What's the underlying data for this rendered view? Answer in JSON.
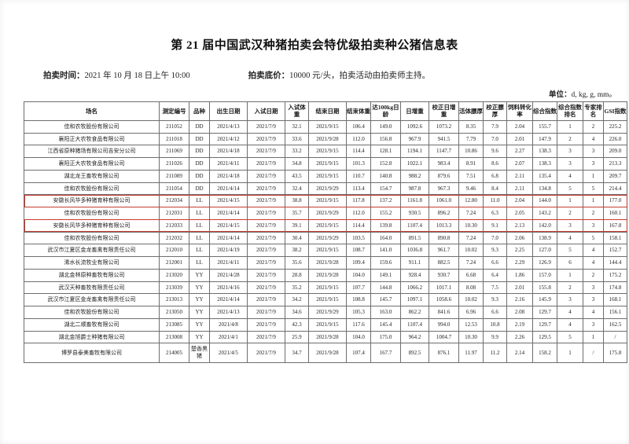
{
  "accent_red": "#c63c30",
  "page": {
    "title": "第 21 届中国武汉种猪拍卖会特优级拍卖种公猪信息表",
    "auction_time_label": "拍卖时间：",
    "auction_time": "2021 年 10 月 18 日上午 10:00",
    "base_price_label": "拍卖底价：",
    "base_price": "10000 元/头，拍卖活动由拍卖师主持。",
    "unit_label": "单位：",
    "unit": "d, kg, g, mm。"
  },
  "table": {
    "checkmark_glyph": "✔",
    "headers": [
      "场名",
      "测定编号",
      "品种",
      "出生日期",
      "入试日期",
      "入试体重",
      "结束日期",
      "结束体重",
      "达100kg日龄",
      "日增重",
      "校正日增重",
      "活体膘厚",
      "校正膘厚",
      "饲料转化率",
      "综合指数",
      "综合指数排名",
      "专家排名",
      "GSI指数"
    ],
    "rows": [
      {
        "highlighted": false,
        "checkmark": false,
        "cells": [
          "佳和农牧股份有限公司",
          "211052",
          "DD",
          "2021/4/13",
          "2021/7/9",
          "32.1",
          "2021/9/15",
          "106.4",
          "149.0",
          "1092.6",
          "1073.2",
          "8.35",
          "7.9",
          "2.04",
          "155.7",
          "1",
          "2",
          "225.2"
        ]
      },
      {
        "highlighted": false,
        "checkmark": false,
        "cells": [
          "襄阳正大农牧食品有限公司",
          "211018",
          "DD",
          "2021/4/12",
          "2021/7/9",
          "33.6",
          "2021/9/28",
          "112.0",
          "156.8",
          "967.9",
          "941.5",
          "7.79",
          "7.0",
          "2.01",
          "147.9",
          "2",
          "4",
          "226.0"
        ]
      },
      {
        "highlighted": false,
        "checkmark": false,
        "cells": [
          "江西省原种猪场有限公司吉安分公司",
          "211069",
          "DD",
          "2021/4/18",
          "2021/7/9",
          "33.2",
          "2021/9/15",
          "114.4",
          "128.1",
          "1194.1",
          "1147.7",
          "10.86",
          "9.6",
          "2.27",
          "138.3",
          "3",
          "3",
          "209.0"
        ]
      },
      {
        "highlighted": false,
        "checkmark": false,
        "cells": [
          "襄阳正大农牧食品有限公司",
          "211026",
          "DD",
          "2021/4/11",
          "2021/7/9",
          "34.8",
          "2021/9/15",
          "101.3",
          "152.8",
          "1022.1",
          "983.4",
          "8.91",
          "8.6",
          "2.07",
          "138.3",
          "3",
          "3",
          "213.3"
        ]
      },
      {
        "highlighted": false,
        "checkmark": false,
        "cells": [
          "湖北龙王畜牧有限公司",
          "211089",
          "DD",
          "2021/4/18",
          "2021/7/9",
          "43.5",
          "2021/9/15",
          "110.7",
          "140.8",
          "988.2",
          "879.6",
          "7.51",
          "6.8",
          "2.11",
          "135.4",
          "4",
          "1",
          "209.7"
        ]
      },
      {
        "highlighted": false,
        "checkmark": false,
        "cells": [
          "佳和农牧股份有限公司",
          "211054",
          "DD",
          "2021/4/14",
          "2021/7/9",
          "32.4",
          "2021/9/29",
          "113.4",
          "154.7",
          "987.8",
          "967.3",
          "9.46",
          "8.4",
          "2.11",
          "134.8",
          "5",
          "5",
          "214.4"
        ]
      },
      {
        "highlighted": true,
        "checkmark": true,
        "cells": [
          "安徽长风华多种猪育种有限公司",
          "212034",
          "LL",
          "2021/4/15",
          "2021/7/9",
          "38.8",
          "2021/9/15",
          "117.8",
          "137.2",
          "1161.8",
          "1061.0",
          "12.80",
          "11.0",
          "2.04",
          "144.0",
          "1",
          "1",
          "177.0"
        ]
      },
      {
        "highlighted": false,
        "checkmark": false,
        "cells": [
          "佳和农牧股份有限公司",
          "212031",
          "LL",
          "2021/4/14",
          "2021/7/9",
          "35.7",
          "2021/9/29",
          "112.0",
          "155.2",
          "930.5",
          "896.2",
          "7.24",
          "6.3",
          "2.05",
          "143.2",
          "2",
          "2",
          "160.1"
        ]
      },
      {
        "highlighted": true,
        "checkmark": true,
        "cells": [
          "安徽长风华多种猪育种有限公司",
          "212033",
          "LL",
          "2021/4/15",
          "2021/7/9",
          "39.1",
          "2021/9/15",
          "114.4",
          "139.8",
          "1107.4",
          "1013.3",
          "10.30",
          "9.1",
          "2.13",
          "142.0",
          "3",
          "3",
          "167.8"
        ]
      },
      {
        "highlighted": false,
        "checkmark": false,
        "cells": [
          "佳和农牧股份有限公司",
          "212032",
          "LL",
          "2021/4/14",
          "2021/7/9",
          "30.4",
          "2021/9/29",
          "103.5",
          "164.0",
          "891.5",
          "890.8",
          "7.24",
          "7.0",
          "2.06",
          "138.9",
          "4",
          "5",
          "158.1"
        ]
      },
      {
        "highlighted": false,
        "checkmark": false,
        "cells": [
          "武汉市江夏区金龙畜禽有限责任公司",
          "212010",
          "LL",
          "2021/4/19",
          "2021/7/9",
          "38.2",
          "2021/9/15",
          "108.7",
          "141.0",
          "1036.8",
          "961.7",
          "10.02",
          "9.3",
          "2.25",
          "127.0",
          "5",
          "4",
          "152.7"
        ]
      },
      {
        "highlighted": false,
        "checkmark": false,
        "cells": [
          "浠水长流牧业有限公司",
          "212001",
          "LL",
          "2021/4/11",
          "2021/7/9",
          "35.6",
          "2021/9/28",
          "109.4",
          "159.6",
          "911.1",
          "882.5",
          "7.24",
          "6.6",
          "2.29",
          "126.9",
          "6",
          "4",
          "144.4"
        ]
      },
      {
        "highlighted": false,
        "checkmark": false,
        "cells": [
          "湖北金林原种畜牧有限公司",
          "213020",
          "YY",
          "2021/4/28",
          "2021/7/9",
          "28.8",
          "2021/9/28",
          "104.0",
          "149.1",
          "928.4",
          "930.7",
          "6.68",
          "6.4",
          "1.86",
          "157.0",
          "1",
          "2",
          "175.2"
        ]
      },
      {
        "highlighted": false,
        "checkmark": false,
        "cells": [
          "武汉天种畜牧有限责任公司",
          "213039",
          "YY",
          "2021/4/16",
          "2021/7/9",
          "35.2",
          "2021/9/15",
          "107.7",
          "144.8",
          "1066.2",
          "1017.1",
          "8.08",
          "7.5",
          "2.01",
          "155.8",
          "2",
          "3",
          "174.8"
        ]
      },
      {
        "highlighted": false,
        "checkmark": false,
        "cells": [
          "武汉市江夏区金龙畜禽有限责任公司",
          "213013",
          "YY",
          "2021/4/14",
          "2021/7/9",
          "34.2",
          "2021/9/15",
          "108.8",
          "145.7",
          "1097.1",
          "1058.6",
          "10.02",
          "9.3",
          "2.16",
          "145.9",
          "3",
          "3",
          "168.1"
        ]
      },
      {
        "highlighted": false,
        "checkmark": false,
        "cells": [
          "佳和农牧股份有限公司",
          "213050",
          "YY",
          "2021/4/13",
          "2021/7/9",
          "34.6",
          "2021/9/29",
          "105.3",
          "163.0",
          "862.2",
          "841.6",
          "6.96",
          "6.6",
          "2.08",
          "129.7",
          "4",
          "4",
          "156.1"
        ]
      },
      {
        "highlighted": false,
        "checkmark": false,
        "cells": [
          "湖北二顺畜牧有限公司",
          "213085",
          "YY",
          "2021/4/8",
          "2021/7/9",
          "42.3",
          "2021/9/15",
          "117.6",
          "145.4",
          "1107.4",
          "994.0",
          "12.53",
          "10.8",
          "2.19",
          "129.7",
          "4",
          "3",
          "162.5"
        ]
      },
      {
        "highlighted": false,
        "checkmark": false,
        "cells": [
          "湖北金旭爵士种猪有限公司",
          "213008",
          "YY",
          "2021/4/1",
          "2021/7/9",
          "25.9",
          "2021/9/28",
          "104.0",
          "175.0",
          "964.2",
          "1004.7",
          "10.30",
          "9.9",
          "2.26",
          "129.5",
          "5",
          "1",
          "/"
        ]
      },
      {
        "highlighted": false,
        "checkmark": false,
        "cells": [
          "博罗县泰美畜牧有限公司",
          "214005",
          "楚香黑猪",
          "2021/4/5",
          "2021/7/9",
          "34.7",
          "2021/9/28",
          "107.4",
          "167.7",
          "892.5",
          "876.1",
          "11.97",
          "11.2",
          "2.14",
          "158.2",
          "1",
          "/",
          "175.8"
        ]
      }
    ]
  }
}
